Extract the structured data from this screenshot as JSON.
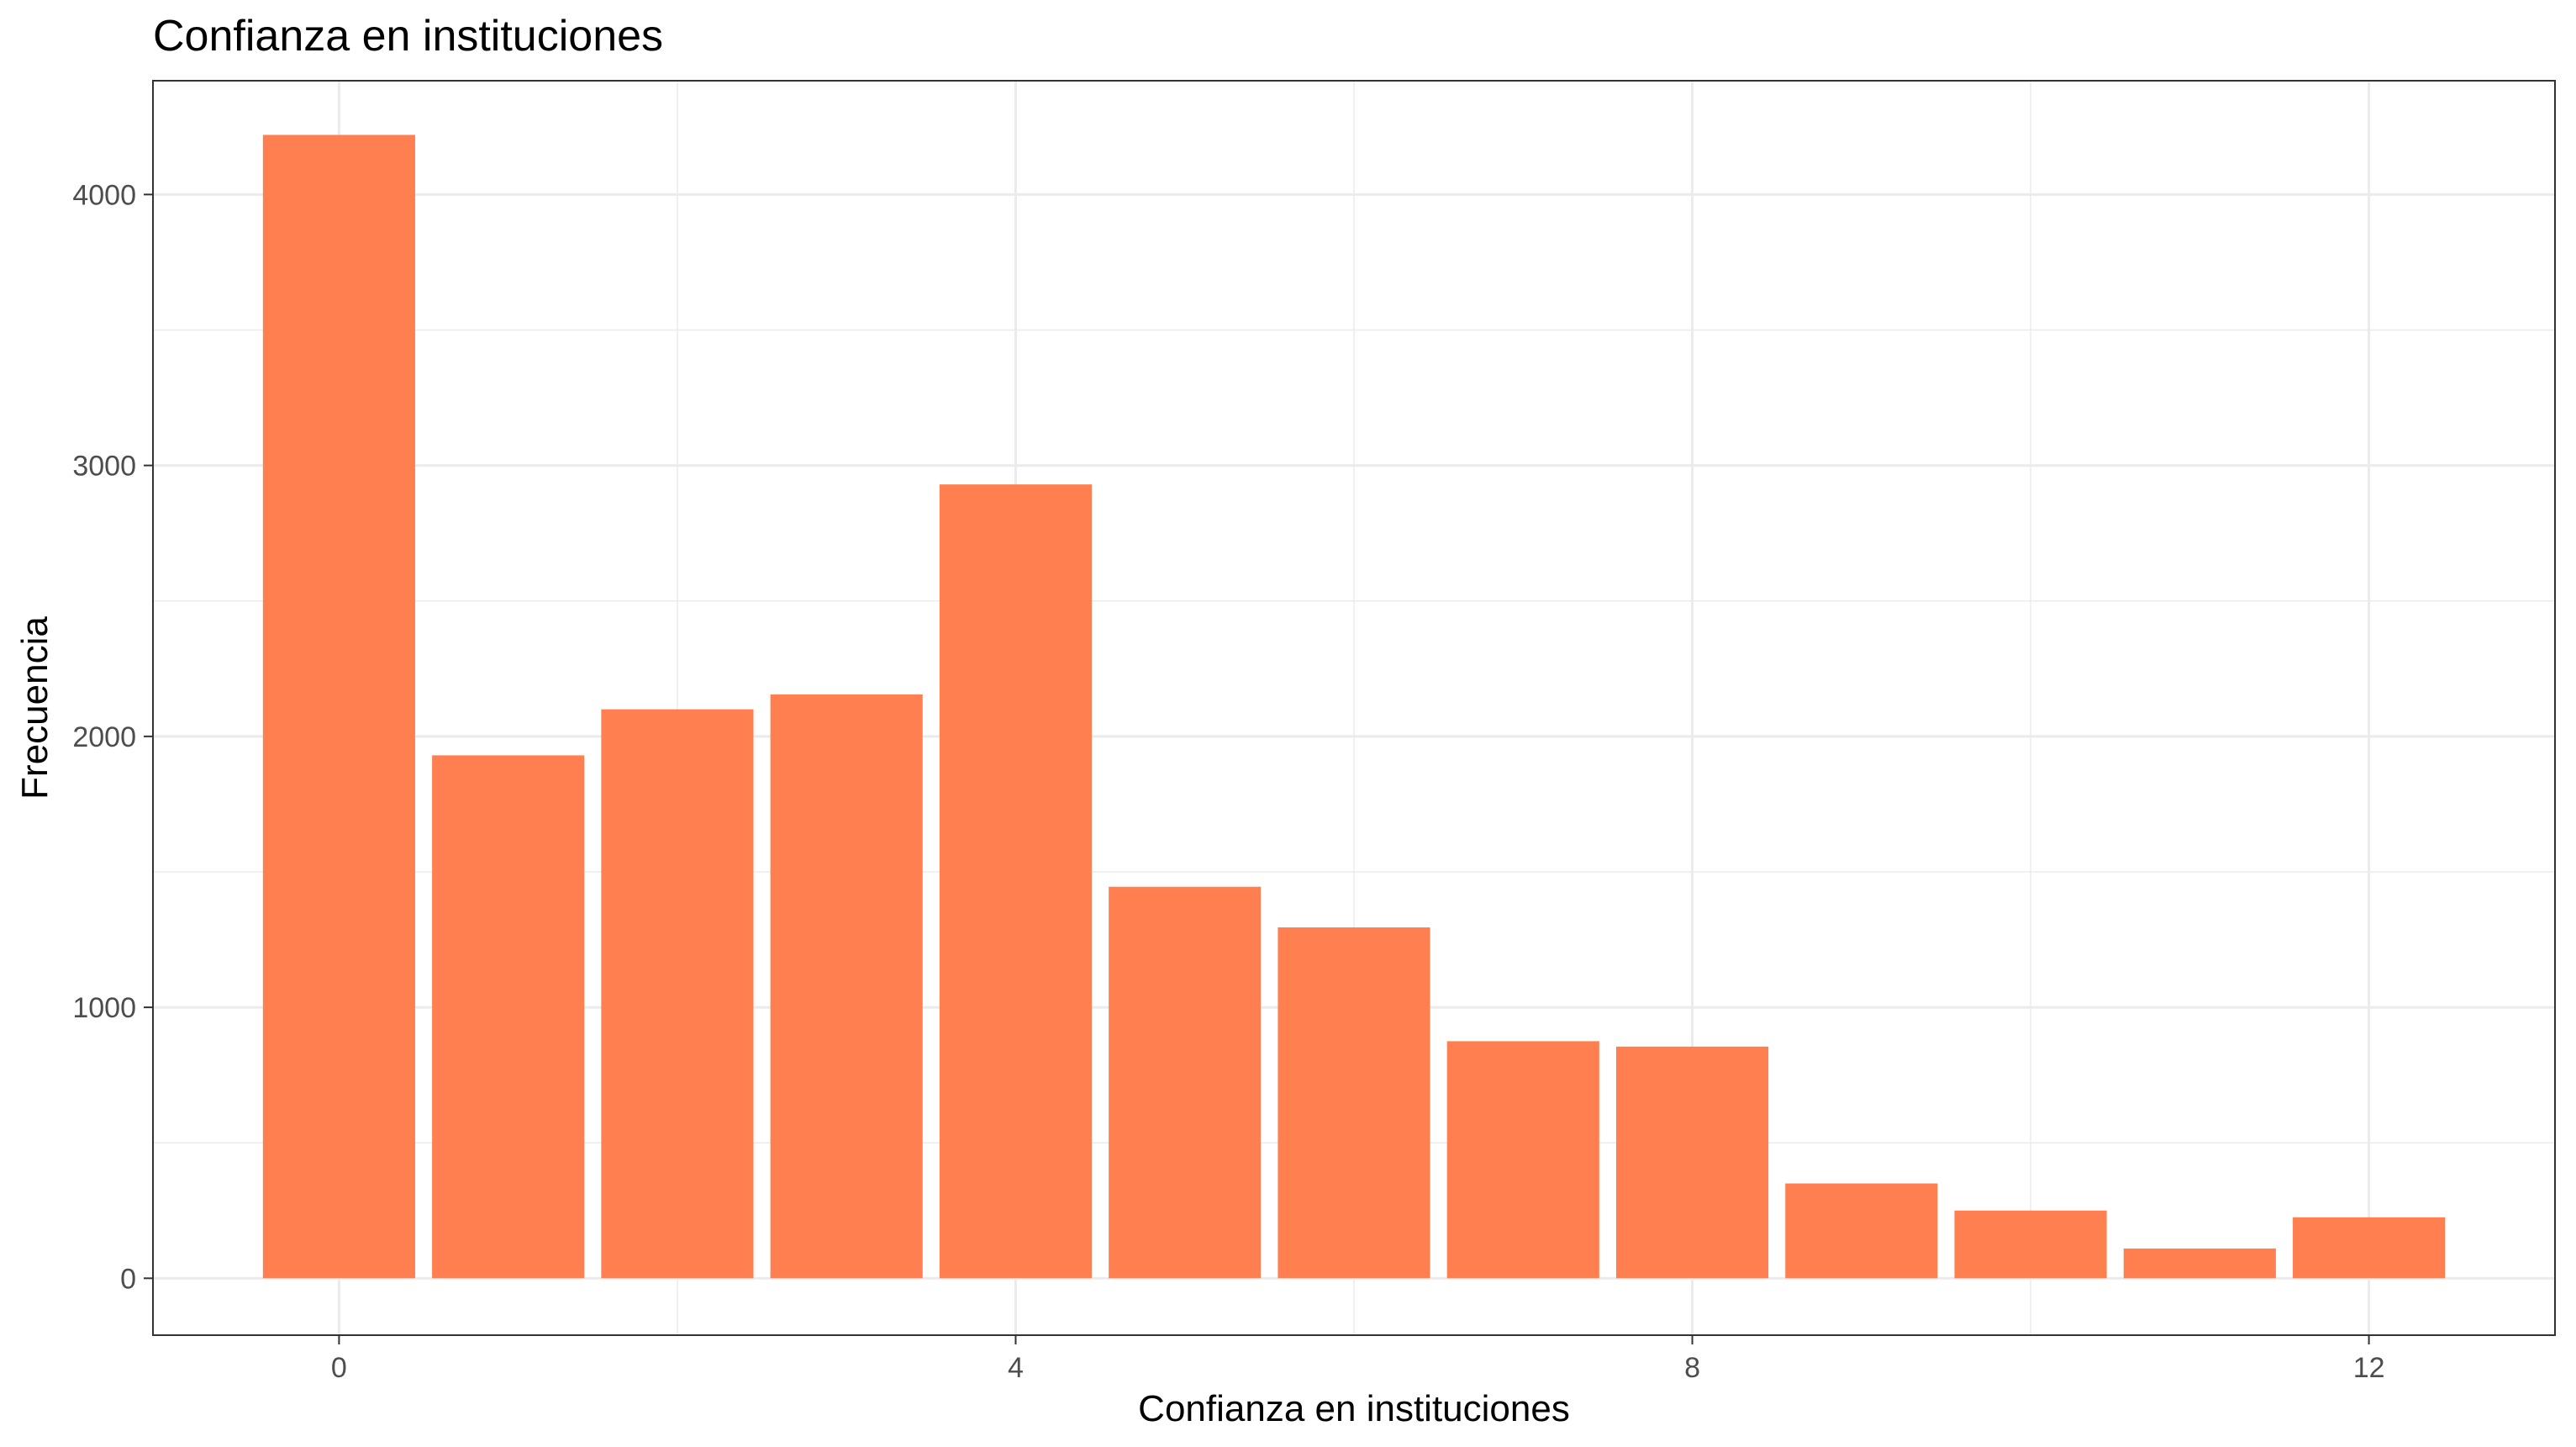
{
  "chart_data": {
    "type": "bar",
    "title": "Confianza en instituciones",
    "xlabel": "Confianza en instituciones",
    "ylabel": "Frecuencia",
    "x": [
      0,
      1,
      2,
      3,
      4,
      5,
      6,
      7,
      8,
      9,
      10,
      11,
      12
    ],
    "values": [
      4220,
      1930,
      2100,
      2155,
      2930,
      1445,
      1295,
      875,
      855,
      350,
      250,
      110,
      225
    ],
    "xlim": [
      -1.1,
      13.1
    ],
    "ylim": [
      -210,
      4420
    ],
    "x_ticks": [
      0,
      4,
      8,
      12
    ],
    "y_ticks": [
      0,
      1000,
      2000,
      3000,
      4000
    ],
    "bar_color": "#FF7F50",
    "grid": true,
    "legend": "none"
  }
}
